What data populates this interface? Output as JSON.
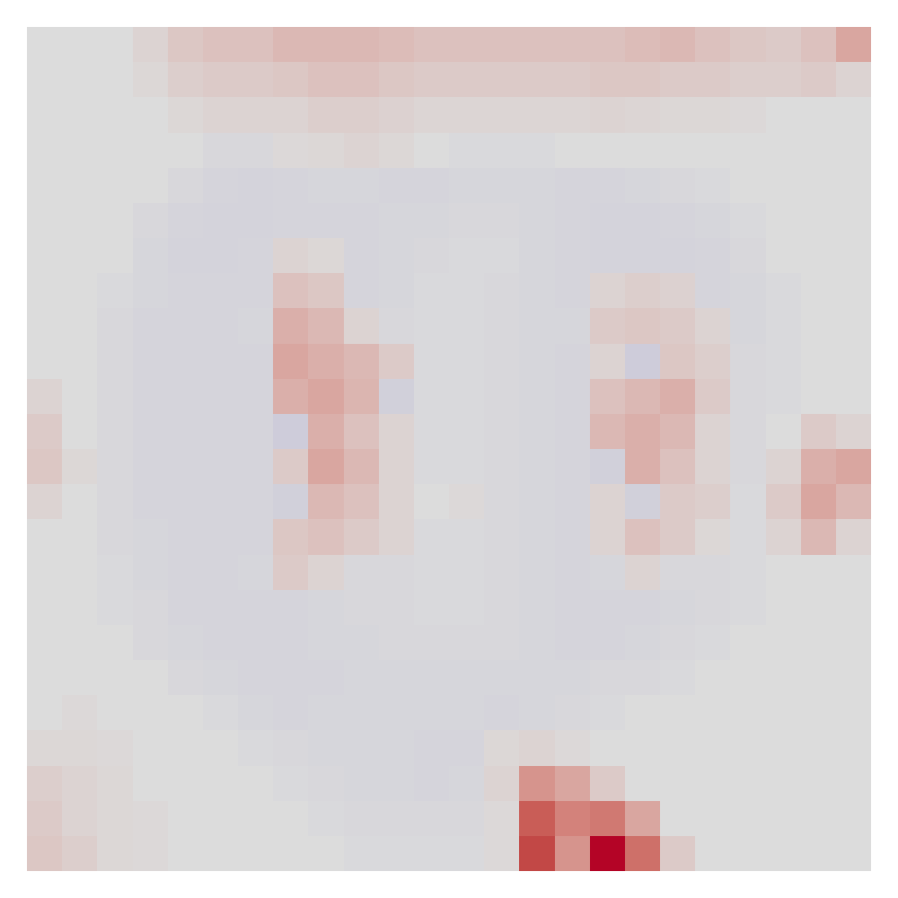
{
  "chart_data": {
    "type": "heatmap",
    "tick_labels": false,
    "cells": [
      [
        0,
        0,
        0,
        0.05,
        0.12,
        0.15,
        0.15,
        0.2,
        0.2,
        0.2,
        0.18,
        0.15,
        0.15,
        0.15,
        0.15,
        0.15,
        0.15,
        0.18,
        0.2,
        0.15,
        0.12,
        0.1,
        0.15,
        0.3
      ],
      [
        0,
        0,
        0,
        0.03,
        0.08,
        0.1,
        0.1,
        0.12,
        0.15,
        0.15,
        0.12,
        0.1,
        0.1,
        0.1,
        0.1,
        0.1,
        0.12,
        0.12,
        0.1,
        0.1,
        0.08,
        0.08,
        0.1,
        0.05
      ],
      [
        0,
        0,
        0,
        0,
        0.03,
        0.05,
        0.05,
        0.05,
        0.08,
        0.08,
        0.06,
        0.04,
        0.04,
        0.04,
        0.04,
        0.04,
        0.05,
        0.04,
        0.03,
        0.03,
        0.02,
        0,
        0,
        0
      ],
      [
        0,
        0,
        0,
        0,
        0,
        -0.03,
        -0.03,
        0.02,
        0.03,
        0.05,
        0.03,
        0,
        -0.02,
        -0.02,
        -0.02,
        0,
        0,
        0,
        0,
        0,
        0,
        0,
        0,
        0
      ],
      [
        0,
        0,
        0,
        0,
        -0.03,
        -0.05,
        -0.06,
        -0.05,
        -0.04,
        -0.04,
        -0.05,
        -0.05,
        -0.04,
        -0.04,
        -0.04,
        -0.05,
        -0.05,
        -0.04,
        -0.03,
        -0.02,
        0,
        0,
        0,
        0
      ],
      [
        0,
        0,
        0,
        -0.03,
        -0.05,
        -0.06,
        -0.06,
        -0.05,
        -0.05,
        -0.05,
        -0.04,
        -0.04,
        -0.03,
        -0.03,
        -0.04,
        -0.05,
        -0.06,
        -0.06,
        -0.05,
        -0.04,
        -0.02,
        0,
        0,
        0
      ],
      [
        0,
        0,
        0,
        -0.04,
        -0.06,
        -0.06,
        -0.05,
        0.05,
        0.03,
        -0.05,
        -0.04,
        -0.03,
        -0.02,
        -0.02,
        -0.04,
        -0.05,
        -0.06,
        -0.06,
        -0.06,
        -0.05,
        -0.03,
        0,
        0,
        0
      ],
      [
        0,
        0,
        -0.02,
        -0.04,
        -0.05,
        -0.05,
        -0.05,
        0.15,
        0.12,
        -0.05,
        -0.04,
        -0.02,
        -0.02,
        -0.03,
        -0.04,
        -0.05,
        0.05,
        0.08,
        0.06,
        -0.05,
        -0.04,
        -0.02,
        0,
        0
      ],
      [
        0,
        0,
        -0.03,
        -0.05,
        -0.05,
        -0.05,
        -0.04,
        0.25,
        0.2,
        0.05,
        -0.03,
        -0.02,
        -0.02,
        -0.03,
        -0.04,
        -0.04,
        0.1,
        0.12,
        0.1,
        0.05,
        -0.04,
        -0.02,
        0,
        0
      ],
      [
        0,
        0,
        -0.03,
        -0.05,
        -0.05,
        -0.05,
        -0.05,
        0.3,
        0.25,
        0.2,
        0.1,
        -0.02,
        -0.02,
        -0.03,
        -0.04,
        -0.05,
        0.05,
        -0.1,
        0.12,
        0.08,
        -0.03,
        -0.02,
        0,
        0
      ],
      [
        0.05,
        0,
        -0.03,
        -0.05,
        -0.05,
        -0.05,
        -0.05,
        0.25,
        0.3,
        0.22,
        -0.08,
        -0.02,
        -0.02,
        -0.03,
        -0.04,
        -0.05,
        0.15,
        0.2,
        0.25,
        0.1,
        -0.03,
        -0.02,
        0,
        0
      ],
      [
        0.1,
        0,
        -0.03,
        -0.05,
        -0.05,
        -0.05,
        -0.05,
        -0.1,
        0.25,
        0.15,
        0.05,
        -0.02,
        -0.02,
        -0.03,
        -0.04,
        -0.05,
        0.2,
        0.25,
        0.2,
        0.05,
        -0.03,
        0,
        0.1,
        0.05
      ],
      [
        0.12,
        0.03,
        -0.03,
        -0.05,
        -0.05,
        -0.05,
        -0.05,
        0.1,
        0.3,
        0.2,
        0.05,
        -0.02,
        -0.02,
        -0.03,
        -0.04,
        -0.05,
        -0.08,
        0.25,
        0.15,
        0.05,
        -0.03,
        0.05,
        0.25,
        0.3
      ],
      [
        0.05,
        0,
        -0.03,
        -0.05,
        -0.05,
        -0.05,
        -0.05,
        -0.08,
        0.2,
        0.15,
        0.05,
        0,
        0.02,
        -0.03,
        -0.04,
        -0.05,
        0.05,
        -0.08,
        0.1,
        0.08,
        -0.02,
        0.1,
        0.3,
        0.2
      ],
      [
        0,
        0,
        -0.03,
        -0.04,
        -0.05,
        -0.05,
        -0.05,
        0.12,
        0.15,
        0.1,
        0.05,
        -0.02,
        -0.02,
        -0.03,
        -0.04,
        -0.05,
        0.05,
        0.15,
        0.1,
        0.03,
        -0.02,
        0.05,
        0.2,
        0.05
      ],
      [
        0,
        0,
        -0.02,
        -0.04,
        -0.05,
        -0.05,
        -0.04,
        0.1,
        0.05,
        -0.03,
        -0.03,
        -0.02,
        -0.02,
        -0.03,
        -0.04,
        -0.05,
        -0.04,
        0.05,
        -0.03,
        -0.03,
        -0.02,
        0,
        0,
        0
      ],
      [
        0,
        0,
        -0.02,
        -0.03,
        -0.05,
        -0.05,
        -0.05,
        -0.05,
        -0.04,
        -0.03,
        -0.03,
        -0.02,
        -0.02,
        -0.03,
        -0.04,
        -0.05,
        -0.05,
        -0.05,
        -0.04,
        -0.03,
        -0.02,
        0,
        0,
        0
      ],
      [
        0,
        0,
        0,
        -0.03,
        -0.04,
        -0.05,
        -0.05,
        -0.05,
        -0.04,
        -0.04,
        -0.03,
        -0.03,
        -0.03,
        -0.03,
        -0.04,
        -0.05,
        -0.05,
        -0.04,
        -0.03,
        -0.02,
        0,
        0,
        0,
        0
      ],
      [
        0,
        0,
        0,
        0,
        -0.03,
        -0.04,
        -0.05,
        -0.05,
        -0.05,
        -0.04,
        -0.04,
        -0.04,
        -0.04,
        -0.04,
        -0.04,
        -0.04,
        -0.03,
        -0.03,
        -0.02,
        0,
        0,
        0,
        0,
        0
      ],
      [
        0,
        0.02,
        0,
        0,
        0,
        -0.02,
        -0.04,
        -0.05,
        -0.04,
        -0.04,
        -0.04,
        -0.04,
        -0.04,
        -0.05,
        -0.04,
        -0.03,
        -0.02,
        0,
        0,
        0,
        0,
        0,
        0,
        0
      ],
      [
        0.03,
        0.03,
        0.02,
        0,
        0,
        0,
        -0.02,
        -0.03,
        -0.04,
        -0.04,
        -0.04,
        -0.05,
        -0.05,
        0.03,
        0.05,
        0.02,
        0,
        0,
        0,
        0,
        0,
        0,
        0,
        0
      ],
      [
        0.08,
        0.05,
        0.03,
        0,
        0,
        0,
        0,
        -0.02,
        -0.03,
        -0.04,
        -0.04,
        -0.05,
        -0.04,
        0.05,
        0.4,
        0.3,
        0.1,
        0,
        0,
        0,
        0,
        0,
        0,
        0
      ],
      [
        0.1,
        0.05,
        0.03,
        0.02,
        0,
        0,
        0,
        0,
        -0.02,
        -0.03,
        -0.03,
        -0.03,
        -0.03,
        0.02,
        0.7,
        0.5,
        0.55,
        0.3,
        0,
        0,
        0,
        0,
        0,
        0
      ],
      [
        0.12,
        0.08,
        0.03,
        0.02,
        0,
        0,
        0,
        0,
        0,
        -0.02,
        -0.02,
        -0.02,
        -0.02,
        0.02,
        0.8,
        0.4,
        1,
        0.6,
        0.1,
        0,
        0,
        0,
        0,
        0
      ]
    ]
  }
}
